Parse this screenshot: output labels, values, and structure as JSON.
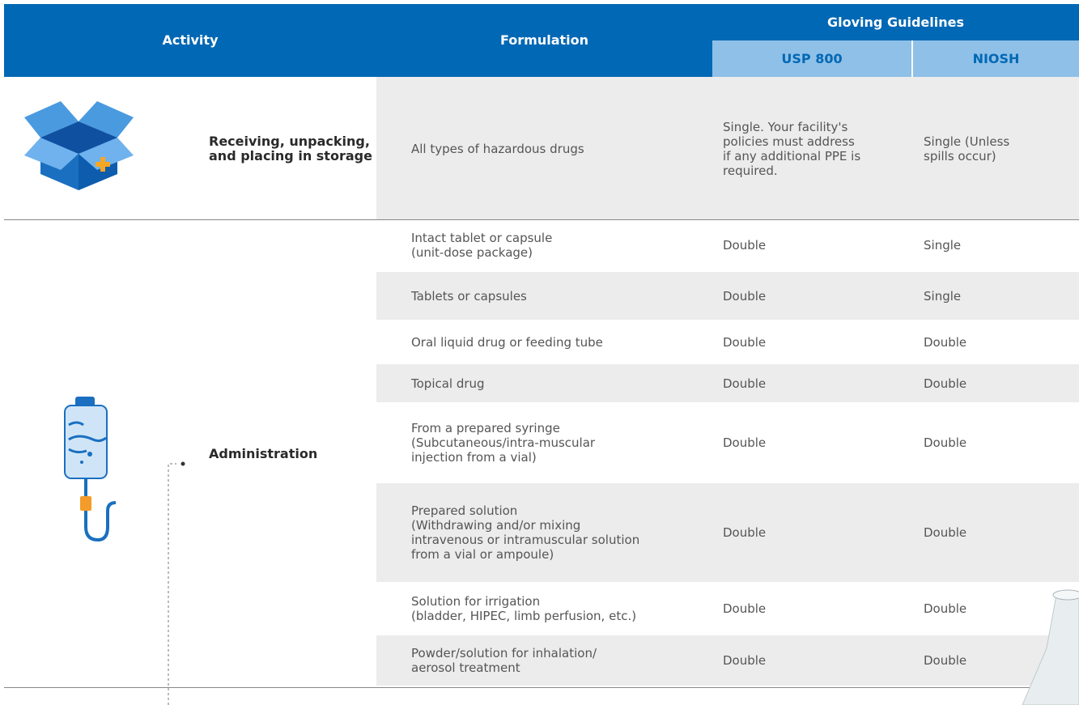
{
  "table": {
    "header": {
      "activity": "Activity",
      "formulation": "Formulation",
      "gloving_guidelines": "Gloving Guidelines",
      "usp800": "USP 800",
      "niosh": "NIOSH"
    },
    "groups": [
      {
        "activity": "Receiving, unpacking,\nand placing in storage",
        "rows": [
          {
            "formulation": "All types of hazardous drugs",
            "usp800": "Single. Your facility's\npolicies must address\nif any additional PPE is\nrequired.",
            "niosh": "Single (Unless\nspills occur)"
          }
        ]
      },
      {
        "activity": "Administration",
        "rows": [
          {
            "formulation": "Intact tablet or capsule\n(unit-dose package)",
            "usp800": "Double",
            "niosh": "Single"
          },
          {
            "formulation": "Tablets or capsules",
            "usp800": "Double",
            "niosh": "Single"
          },
          {
            "formulation": "Oral liquid drug or feeding tube",
            "usp800": "Double",
            "niosh": "Double"
          },
          {
            "formulation": "Topical drug",
            "usp800": "Double",
            "niosh": "Double"
          },
          {
            "formulation": "From a prepared syringe\n(Subcutaneous/intra-muscular\ninjection from a vial)",
            "usp800": "Double",
            "niosh": "Double"
          },
          {
            "formulation": "Prepared solution\n(Withdrawing and/or mixing\nintravenous or intramuscular solution\nfrom a vial or ampoule)",
            "usp800": "Double",
            "niosh": "Double"
          },
          {
            "formulation": "Solution for irrigation\n(bladder, HIPEC, limb perfusion, etc.)",
            "usp800": "Double",
            "niosh": "Double"
          },
          {
            "formulation": "Powder/solution for inhalation/\naerosol treatment",
            "usp800": "Double",
            "niosh": "Double"
          }
        ]
      }
    ]
  }
}
